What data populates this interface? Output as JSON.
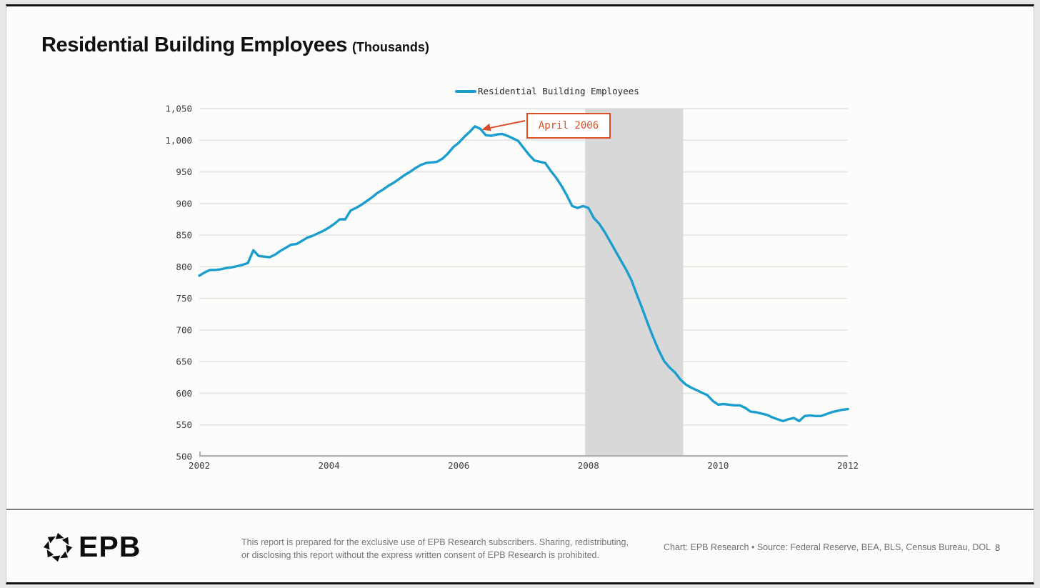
{
  "header": {
    "title": "Residential Building Employees",
    "title_suffix": "(Thousands)"
  },
  "legend": {
    "label": "Residential Building Employees"
  },
  "annotation": {
    "label": "April 2006"
  },
  "footer": {
    "logo_text": "EPB",
    "disclaimer_line1": "This report is prepared for the exclusive use of EPB Research subscribers. Sharing, redistributing,",
    "disclaimer_line2": "or disclosing this report without the express written consent of EPB Research is prohibited.",
    "credit": "Chart: EPB Research  •  Source: Federal Reserve, BEA, BLS, Census Bureau, DOL",
    "page_number": "8"
  },
  "chart_data": {
    "type": "line",
    "title": "Residential Building Employees (Thousands)",
    "xlabel": "",
    "ylabel": "",
    "ylim": [
      500,
      1050
    ],
    "xlim": [
      2002,
      2012
    ],
    "grid": "horizontal",
    "legend_position": "top-center",
    "yticks": [
      {
        "value": 500,
        "label": "500"
      },
      {
        "value": 550,
        "label": "550"
      },
      {
        "value": 600,
        "label": "600"
      },
      {
        "value": 650,
        "label": "650"
      },
      {
        "value": 700,
        "label": "700"
      },
      {
        "value": 750,
        "label": "750"
      },
      {
        "value": 800,
        "label": "800"
      },
      {
        "value": 850,
        "label": "850"
      },
      {
        "value": 900,
        "label": "900"
      },
      {
        "value": 950,
        "label": "950"
      },
      {
        "value": 1000,
        "label": "1,000"
      },
      {
        "value": 1050,
        "label": "1,050"
      }
    ],
    "xticks": [
      {
        "value": 2002,
        "label": "2002"
      },
      {
        "value": 2004,
        "label": "2004"
      },
      {
        "value": 2006,
        "label": "2006"
      },
      {
        "value": 2008,
        "label": "2008"
      },
      {
        "value": 2010,
        "label": "2010"
      },
      {
        "value": 2012,
        "label": "2012"
      }
    ],
    "recession_band": {
      "start": 2007.95,
      "end": 2009.46
    },
    "annotation": {
      "label": "April 2006",
      "target_x": 2006.29,
      "target_y": 1022
    },
    "x_start_year": 2002,
    "x_step_months": 1,
    "series": [
      {
        "name": "Residential Building Employees",
        "values": [
          786,
          791,
          795,
          795,
          796,
          798,
          799,
          801,
          803,
          806,
          826,
          817,
          816,
          815,
          819,
          825,
          830,
          835,
          836,
          841,
          846,
          849,
          853,
          857,
          862,
          868,
          875,
          875,
          889,
          893,
          898,
          904,
          910,
          917,
          922,
          928,
          933,
          939,
          945,
          950,
          956,
          961,
          964,
          965,
          966,
          971,
          979,
          989,
          996,
          1005,
          1013,
          1022,
          1018,
          1008,
          1007,
          1009,
          1010,
          1007,
          1003,
          999,
          988,
          977,
          968,
          966,
          964,
          952,
          941,
          928,
          913,
          896,
          893,
          896,
          893,
          877,
          868,
          855,
          840,
          825,
          810,
          795,
          778,
          755,
          733,
          710,
          688,
          668,
          651,
          641,
          633,
          622,
          614,
          609,
          605,
          601,
          597,
          588,
          582,
          583,
          582,
          581,
          581,
          577,
          571,
          570,
          568,
          566,
          562,
          559,
          556,
          559,
          561,
          556,
          564,
          565,
          564,
          564,
          567,
          570,
          572,
          574,
          575
        ]
      }
    ],
    "colors": {
      "line": "#1b9ecd",
      "recession_band": "#d8d8d8",
      "annotation": "#dc4e26",
      "gridline": "#e2e2e0",
      "axis": "#b0b0ae"
    }
  }
}
